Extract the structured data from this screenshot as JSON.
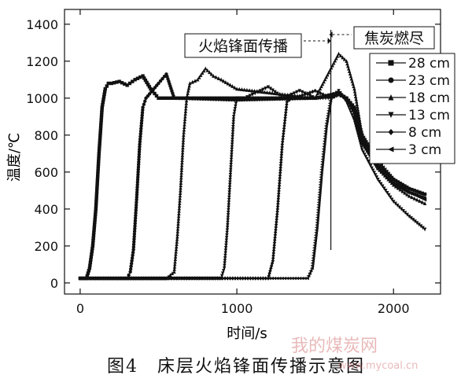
{
  "chart_data": {
    "type": "line",
    "xlabel": "时间/s",
    "ylabel": "温度/℃",
    "xlim": [
      -100,
      2300
    ],
    "ylim": [
      -60,
      1480
    ],
    "xticks": [
      0,
      1000,
      2000
    ],
    "yticks": [
      0,
      200,
      400,
      600,
      800,
      1000,
      1200,
      1400
    ],
    "grid": false,
    "legend_position": "top-right",
    "annotations": [
      {
        "text": "火焰锋面传播",
        "at_x": 1600
      },
      {
        "text": "焦炭燃尽",
        "at_x": 1600
      }
    ],
    "series": [
      {
        "name": "28 cm",
        "marker": "square",
        "x": [
          0,
          40,
          60,
          80,
          100,
          120,
          140,
          160,
          180,
          200,
          250,
          300,
          350,
          400,
          450,
          500,
          1000,
          1500,
          1650,
          1700,
          1750,
          1800,
          1900,
          2000,
          2100,
          2200
        ],
        "y": [
          25,
          25,
          80,
          200,
          400,
          700,
          950,
          1050,
          1080,
          1080,
          1090,
          1070,
          1100,
          1120,
          1050,
          1000,
          1000,
          1000,
          1020,
          1000,
          950,
          780,
          640,
          560,
          510,
          480
        ]
      },
      {
        "name": "23 cm",
        "marker": "circle",
        "x": [
          0,
          300,
          320,
          340,
          360,
          380,
          400,
          420,
          500,
          550,
          600,
          1000,
          1500,
          1650,
          1700,
          1750,
          1800,
          1900,
          2000,
          2100,
          2200
        ],
        "y": [
          25,
          25,
          60,
          180,
          450,
          750,
          950,
          1000,
          1080,
          1130,
          1000,
          990,
          1000,
          1030,
          1000,
          920,
          760,
          620,
          540,
          490,
          460
        ]
      },
      {
        "name": "18 cm",
        "marker": "triangle-up",
        "x": [
          0,
          550,
          600,
          620,
          640,
          660,
          680,
          700,
          750,
          800,
          850,
          900,
          1000,
          1500,
          1650,
          1700,
          1750,
          1800,
          1900,
          2000,
          2100,
          2200
        ],
        "y": [
          25,
          25,
          60,
          250,
          500,
          800,
          1000,
          1080,
          1100,
          1160,
          1120,
          1100,
          1050,
          1000,
          1240,
          1200,
          1050,
          800,
          620,
          530,
          470,
          430
        ]
      },
      {
        "name": "13 cm",
        "marker": "triangle-down",
        "x": [
          0,
          900,
          920,
          940,
          960,
          980,
          1000,
          1050,
          1100,
          1200,
          1300,
          1400,
          1500,
          1600,
          1650,
          1700,
          1750,
          1800,
          1900,
          2000,
          2100,
          2200
        ],
        "y": [
          25,
          25,
          80,
          300,
          600,
          900,
          1000,
          1000,
          1020,
          1060,
          1000,
          1040,
          1000,
          1000,
          1040,
          980,
          880,
          720,
          560,
          440,
          360,
          290
        ]
      },
      {
        "name": "8 cm",
        "marker": "diamond",
        "x": [
          0,
          1200,
          1230,
          1260,
          1290,
          1320,
          1350,
          1400,
          1500,
          1600,
          1650,
          1700,
          1750,
          1800,
          1900,
          2000,
          2100,
          2200
        ],
        "y": [
          25,
          25,
          120,
          400,
          750,
          980,
          1000,
          1010,
          1040,
          1000,
          1020,
          1000,
          930,
          780,
          640,
          560,
          510,
          480
        ]
      },
      {
        "name": "3 cm",
        "marker": "triangle-left",
        "x": [
          0,
          1450,
          1480,
          1510,
          1540,
          1570,
          1600,
          1650,
          1700,
          1750,
          1800,
          1900,
          2000,
          2100,
          2200
        ],
        "y": [
          25,
          25,
          80,
          300,
          600,
          850,
          1000,
          1020,
          1000,
          940,
          800,
          660,
          560,
          490,
          450
        ]
      }
    ]
  },
  "caption": "图4　床层火焰锋面传播示意图",
  "watermark": {
    "site_name": "我的煤炭网",
    "url": "www.mycoal.cn"
  }
}
